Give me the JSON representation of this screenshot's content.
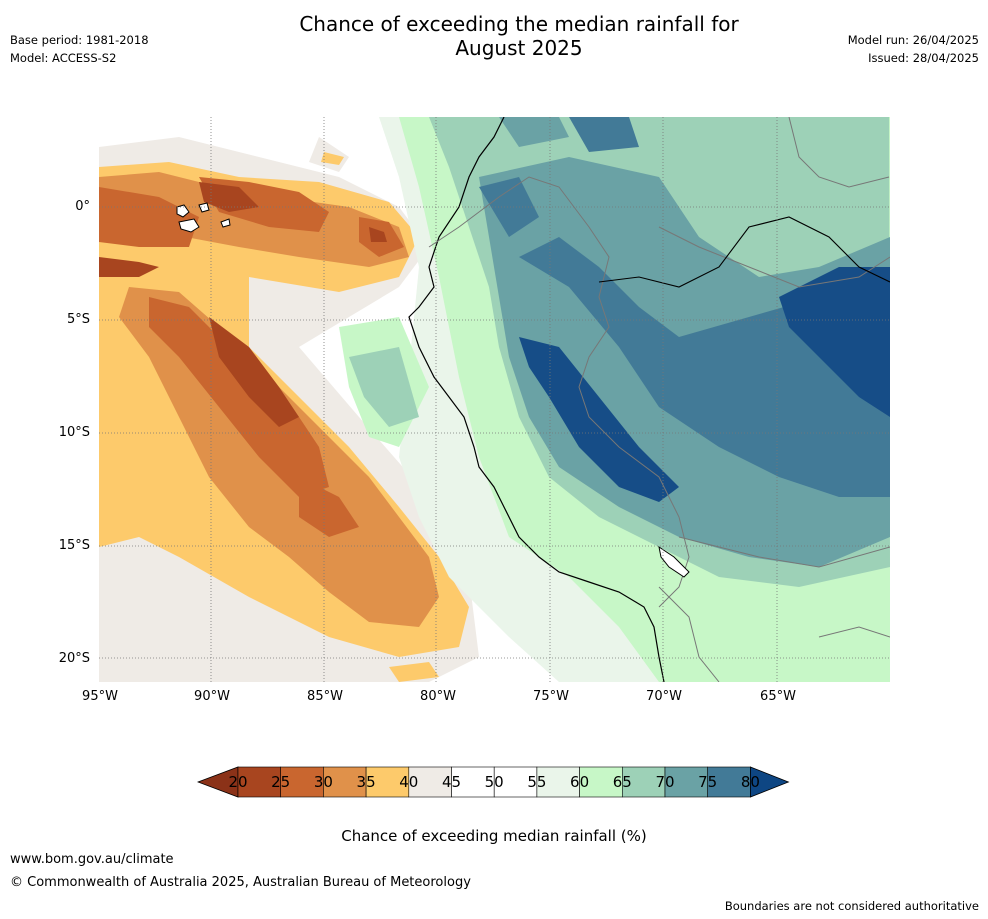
{
  "header": {
    "title_line1": "Chance of exceeding the median rainfall for",
    "title_line2": "August 2025",
    "base_period": "Base period: 1981-2018",
    "model": "Model: ACCESS-S2",
    "model_run": "Model run: 26/04/2025",
    "issued": "Issued: 28/04/2025"
  },
  "map": {
    "lat_labels": [
      "0°",
      "5°S",
      "10°S",
      "15°S",
      "20°S"
    ],
    "lon_labels": [
      "95°W",
      "90°W",
      "85°W",
      "80°W",
      "75°W",
      "70°W",
      "65°W"
    ]
  },
  "colorbar": {
    "ticks": [
      "20",
      "25",
      "30",
      "35",
      "40",
      "45",
      "50",
      "55",
      "60",
      "65",
      "70",
      "75",
      "80"
    ],
    "colors": [
      "#a8451f",
      "#c9662f",
      "#e0914a",
      "#fdca6b",
      "#efebe6",
      "#ffffff",
      "#ffffff",
      "#eaf5ea",
      "#c7f7c7",
      "#9dd1b7",
      "#6aa2a5",
      "#427a97",
      "#164d87"
    ],
    "low_extend_color": "#8b3218",
    "high_extend_color": "#0e4683",
    "label": "Chance of exceeding median rainfall (%)"
  },
  "footer": {
    "url": "www.bom.gov.au/climate",
    "copyright": "© Commonwealth of Australia 2025, Australian Bureau of Meteorology",
    "disclaimer": "Boundaries are not considered authoritative"
  }
}
